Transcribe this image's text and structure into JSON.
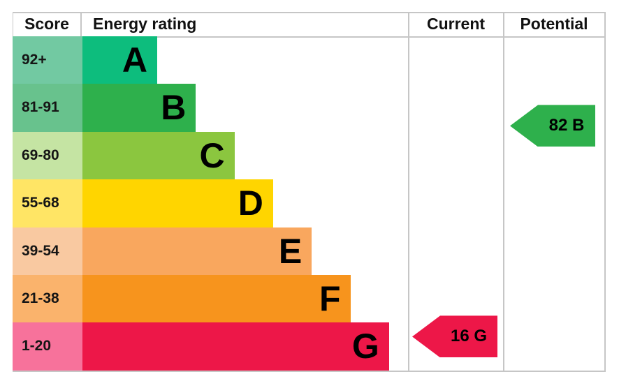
{
  "header": {
    "score_label": "Score",
    "energy_rating_label": "Energy rating",
    "current_label": "Current",
    "potential_label": "Potential"
  },
  "chart_data": {
    "type": "bar",
    "title": "EPC energy efficiency rating chart",
    "categories": [
      "A",
      "B",
      "C",
      "D",
      "E",
      "F",
      "G"
    ],
    "bands": [
      {
        "letter": "A",
        "score_range": "92+",
        "band_color": "#0dbd7d",
        "score_color": "#72c9a2"
      },
      {
        "letter": "B",
        "score_range": "81-91",
        "band_color": "#2eb04c",
        "score_color": "#68c28d"
      },
      {
        "letter": "C",
        "score_range": "69-80",
        "band_color": "#8bc63f",
        "score_color": "#c5e4a3"
      },
      {
        "letter": "D",
        "score_range": "55-68",
        "band_color": "#ffd500",
        "score_color": "#ffe565"
      },
      {
        "letter": "E",
        "score_range": "39-54",
        "band_color": "#f9a75e",
        "score_color": "#f9c9a1"
      },
      {
        "letter": "F",
        "score_range": "21-38",
        "band_color": "#f7941d",
        "score_color": "#fab36c"
      },
      {
        "letter": "G",
        "score_range": "1-20",
        "band_color": "#ed1748",
        "score_color": "#f7729b"
      }
    ],
    "current": {
      "score": 16,
      "letter": "G",
      "label": "16 G",
      "arrow_color": "#ed1748"
    },
    "potential": {
      "score": 82,
      "letter": "B",
      "label": "82 B",
      "arrow_color": "#2eb04c"
    },
    "layout_hints": {
      "legend": "none",
      "grid": "table-borders",
      "arrow_direction": "left"
    },
    "border_color": "#c6c6c6"
  }
}
